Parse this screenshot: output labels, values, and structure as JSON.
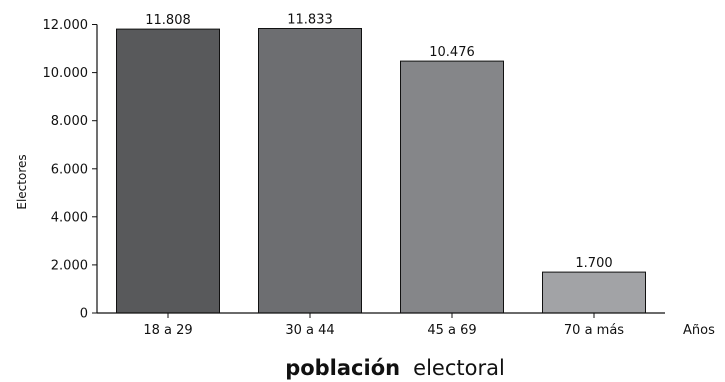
{
  "chart_data": {
    "type": "bar",
    "categories": [
      "18 a 29",
      "30 a 44",
      "45 a 69",
      "70 a más"
    ],
    "values": [
      11808,
      11833,
      10476,
      1700
    ],
    "value_labels": [
      "11.808",
      "11.833",
      "10.476",
      "1.700"
    ],
    "ylabel": "Electores",
    "xunit": "Años",
    "title_bold": "población",
    "title_rest": "electoral",
    "ylim": [
      0,
      12000
    ],
    "yticks": [
      0,
      2000,
      4000,
      6000,
      8000,
      10000,
      12000
    ],
    "ytick_labels": [
      "0",
      "2.000",
      "4.000",
      "6.000",
      "8.000",
      "10.000",
      "12.000"
    ],
    "grid": false,
    "bar_colors": [
      "#58595b",
      "#6d6e71",
      "#858689",
      "#a2a3a6"
    ]
  }
}
